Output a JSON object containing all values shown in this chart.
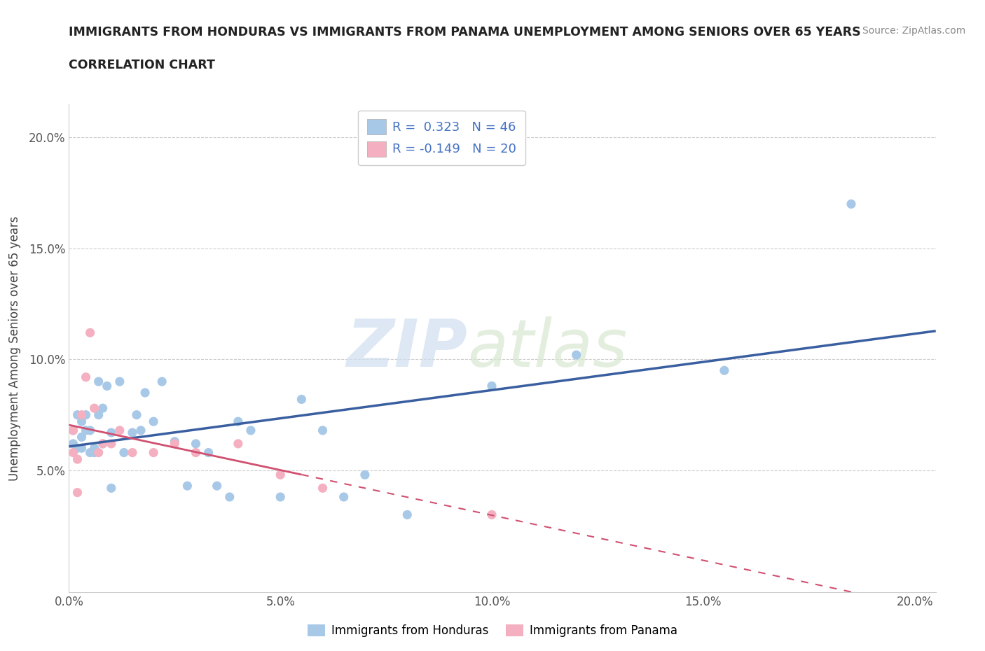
{
  "title_line1": "IMMIGRANTS FROM HONDURAS VS IMMIGRANTS FROM PANAMA UNEMPLOYMENT AMONG SENIORS OVER 65 YEARS",
  "title_line2": "CORRELATION CHART",
  "source": "Source: ZipAtlas.com",
  "ylabel": "Unemployment Among Seniors over 65 years",
  "xlim": [
    0.0,
    0.205
  ],
  "ylim": [
    -0.005,
    0.215
  ],
  "yticks": [
    0.05,
    0.1,
    0.15,
    0.2
  ],
  "xticks": [
    0.0,
    0.05,
    0.1,
    0.15,
    0.2
  ],
  "ytick_labels": [
    "5.0%",
    "10.0%",
    "15.0%",
    "20.0%"
  ],
  "xtick_labels": [
    "0.0%",
    "5.0%",
    "10.0%",
    "15.0%",
    "20.0%"
  ],
  "legend_labels": [
    "Immigrants from Honduras",
    "Immigrants from Panama"
  ],
  "R_honduras": 0.323,
  "N_honduras": 46,
  "R_panama": -0.149,
  "N_panama": 20,
  "watermark_zip": "ZIP",
  "watermark_atlas": "atlas",
  "blue_color": "#a8c8e8",
  "pink_color": "#f4afc0",
  "blue_line_color": "#3a5fa0",
  "pink_line_color": "#d05070",
  "background_color": "#ffffff",
  "grid_color": "#cccccc",
  "title_color": "#222222",
  "honduras_x": [
    0.001,
    0.001,
    0.002,
    0.002,
    0.003,
    0.003,
    0.003,
    0.004,
    0.004,
    0.005,
    0.005,
    0.006,
    0.006,
    0.007,
    0.007,
    0.008,
    0.008,
    0.009,
    0.01,
    0.01,
    0.012,
    0.013,
    0.015,
    0.016,
    0.017,
    0.018,
    0.02,
    0.022,
    0.025,
    0.028,
    0.03,
    0.033,
    0.035,
    0.038,
    0.04,
    0.043,
    0.05,
    0.055,
    0.06,
    0.065,
    0.07,
    0.08,
    0.1,
    0.12,
    0.155,
    0.185
  ],
  "honduras_y": [
    0.062,
    0.068,
    0.06,
    0.075,
    0.065,
    0.072,
    0.06,
    0.068,
    0.075,
    0.058,
    0.068,
    0.06,
    0.058,
    0.075,
    0.09,
    0.062,
    0.078,
    0.088,
    0.067,
    0.042,
    0.09,
    0.058,
    0.067,
    0.075,
    0.068,
    0.085,
    0.072,
    0.09,
    0.063,
    0.043,
    0.062,
    0.058,
    0.043,
    0.038,
    0.072,
    0.068,
    0.038,
    0.082,
    0.068,
    0.038,
    0.048,
    0.03,
    0.088,
    0.102,
    0.095,
    0.17
  ],
  "panama_x": [
    0.001,
    0.001,
    0.002,
    0.002,
    0.003,
    0.004,
    0.005,
    0.006,
    0.007,
    0.008,
    0.01,
    0.012,
    0.015,
    0.02,
    0.025,
    0.03,
    0.04,
    0.05,
    0.06,
    0.1
  ],
  "panama_y": [
    0.058,
    0.068,
    0.055,
    0.04,
    0.075,
    0.092,
    0.112,
    0.078,
    0.058,
    0.062,
    0.062,
    0.068,
    0.058,
    0.058,
    0.062,
    0.058,
    0.062,
    0.048,
    0.042,
    0.03
  ]
}
